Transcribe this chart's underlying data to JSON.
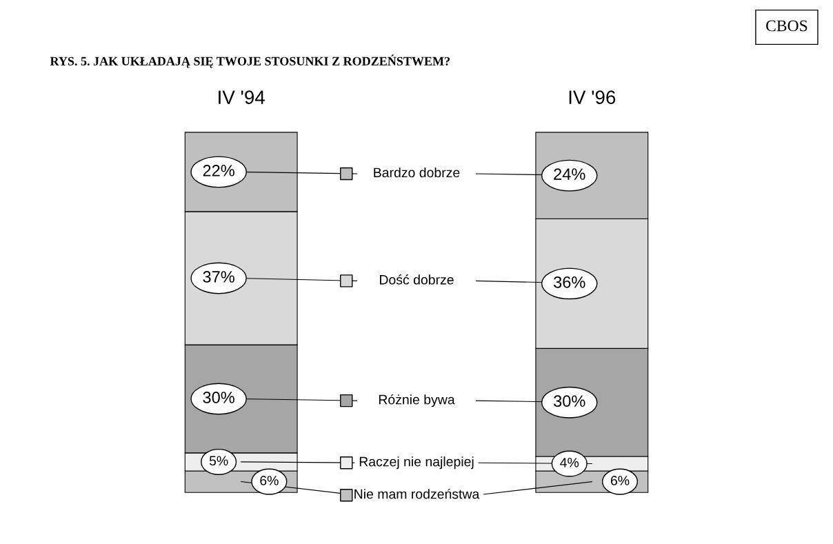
{
  "chart_data": {
    "type": "bar",
    "stacked": true,
    "legend": "center",
    "title": "RYS. 5. JAK UKŁADAJĄ SIĘ TWOJE STOSUNKI Z RODZEŃSTWEM?",
    "annotations": [
      "CBOS"
    ],
    "categories": [
      "IV '94",
      "IV '96"
    ],
    "series": [
      {
        "name": "Nie mam rodzeństwa",
        "color": "#c0c0c0",
        "values": [
          6,
          6
        ],
        "value_labels": [
          "6%",
          "6%"
        ]
      },
      {
        "name": "Raczej nie najlepiej",
        "color": "#eeeeee",
        "values": [
          5,
          4
        ],
        "value_labels": [
          "5%",
          "4%"
        ]
      },
      {
        "name": "Różnie bywa",
        "color": "#a6a6a6",
        "values": [
          30,
          30
        ],
        "value_labels": [
          "30%",
          "30%"
        ]
      },
      {
        "name": "Dość dobrze",
        "color": "#d9d9d9",
        "values": [
          37,
          36
        ],
        "value_labels": [
          "37%",
          "36%"
        ]
      },
      {
        "name": "Bardzo dobrze",
        "color": "#bfbfbf",
        "values": [
          22,
          24
        ],
        "value_labels": [
          "22%",
          "24%"
        ]
      }
    ]
  }
}
